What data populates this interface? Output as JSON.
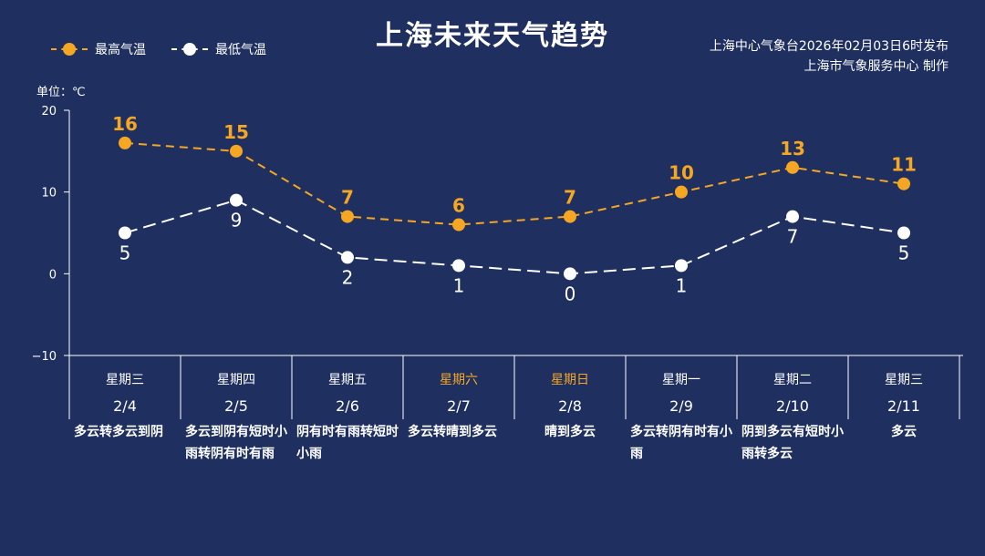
{
  "header": {
    "title": "上海未来天气趋势",
    "source_line1": "上海中心气象台2026年02月03日6时发布",
    "source_line2": "上海市气象服务中心  制作"
  },
  "legend": {
    "high_label": "最高气温",
    "low_label": "最低气温"
  },
  "unit_label": "单位：℃",
  "colors": {
    "background": "#1f3060",
    "high": "#f5a623",
    "low": "#ffffff",
    "weekend": "#f5a623"
  },
  "chart_data": {
    "type": "line",
    "categories": [
      "2/4",
      "2/5",
      "2/6",
      "2/7",
      "2/8",
      "2/9",
      "2/10",
      "2/11"
    ],
    "weekdays": [
      "星期三",
      "星期四",
      "星期五",
      "星期六",
      "星期日",
      "星期一",
      "星期二",
      "星期三"
    ],
    "weekend_flags": [
      false,
      false,
      false,
      true,
      true,
      false,
      false,
      false
    ],
    "weather": [
      "多云转多云到阴",
      "多云到阴有短时小雨转阴有时有雨",
      "阴有时有雨转短时小雨",
      "多云转晴到多云",
      "晴到多云",
      "多云转阴有时有小雨",
      "阴到多云有短时小雨转多云",
      "多云"
    ],
    "series": [
      {
        "name": "最高气温",
        "values": [
          16,
          15,
          7,
          6,
          7,
          10,
          13,
          11
        ],
        "color": "#f5a623"
      },
      {
        "name": "最低气温",
        "values": [
          5,
          9,
          2,
          1,
          0,
          1,
          7,
          5
        ],
        "color": "#ffffff"
      }
    ],
    "ylim": [
      -10,
      20
    ],
    "yticks": [
      -10,
      0,
      10,
      20
    ],
    "ytick_labels": [
      "−10",
      "0",
      "10",
      "20"
    ],
    "grid": false,
    "legend_position": "top-left"
  }
}
